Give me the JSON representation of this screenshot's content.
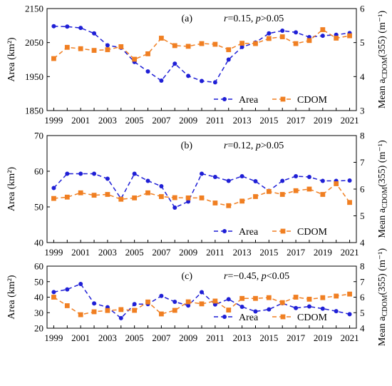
{
  "chart_data": [
    {
      "type": "line",
      "panel_label": "(a)",
      "annotation": {
        "r_label": "r",
        "r_value": "=0.15, ",
        "p_label": "p",
        "p_value": ">0.05"
      },
      "ylabel_left": "Area (km²)",
      "ylabel_right_prefix": "Mean a",
      "ylabel_right_sub": "CDOM",
      "ylabel_right_suffix": "(355) (m⁻¹)",
      "ylim_left": [
        1850,
        2150
      ],
      "yticks_left": [
        1850,
        1950,
        2050,
        2150
      ],
      "ylim_right": [
        3,
        6
      ],
      "yticks_right": [
        3,
        4,
        5,
        6
      ],
      "x": [
        1999,
        2000,
        2001,
        2002,
        2003,
        2004,
        2005,
        2006,
        2007,
        2008,
        2009,
        2010,
        2011,
        2012,
        2013,
        2014,
        2015,
        2016,
        2017,
        2018,
        2019,
        2020,
        2021
      ],
      "xtick_labels": [
        "1999",
        "2001",
        "2003",
        "2005",
        "2007",
        "2009",
        "2011",
        "2013",
        "2015",
        "2017",
        "2019",
        "2021"
      ],
      "legend": [
        "Area",
        "CDOM"
      ],
      "series": [
        {
          "name": "Area",
          "axis": "left",
          "color": "#1f1fd6",
          "values": [
            2098,
            2097,
            2093,
            2077,
            2042,
            2035,
            1993,
            1965,
            1938,
            1988,
            1952,
            1937,
            1933,
            2000,
            2037,
            2050,
            2077,
            2085,
            2080,
            2066,
            2070,
            2073,
            2078
          ]
        },
        {
          "name": "CDOM",
          "axis": "right",
          "color": "#f07f22",
          "values": [
            4.53,
            4.86,
            4.82,
            4.77,
            4.79,
            4.88,
            4.51,
            4.67,
            5.13,
            4.91,
            4.89,
            4.97,
            4.95,
            4.79,
            4.98,
            4.97,
            5.12,
            5.17,
            4.97,
            5.06,
            5.38,
            5.13,
            5.2
          ]
        }
      ]
    },
    {
      "type": "line",
      "panel_label": "(b)",
      "annotation": {
        "r_label": "r",
        "r_value": "=0.12, ",
        "p_label": "p",
        "p_value": ">0.05"
      },
      "ylabel_left": "Area (km²)",
      "ylabel_right_prefix": "Mean a",
      "ylabel_right_sub": "CDOM",
      "ylabel_right_suffix": "(355) (m⁻¹)",
      "ylim_left": [
        40,
        70
      ],
      "yticks_left": [
        40,
        50,
        60,
        70
      ],
      "ylim_right": [
        4,
        8
      ],
      "yticks_right": [
        4,
        5,
        6,
        7,
        8
      ],
      "x": [
        1999,
        2000,
        2001,
        2002,
        2003,
        2004,
        2005,
        2006,
        2007,
        2008,
        2009,
        2010,
        2011,
        2012,
        2013,
        2014,
        2015,
        2016,
        2017,
        2018,
        2019,
        2020,
        2021
      ],
      "xtick_labels": [
        "1999",
        "2001",
        "2003",
        "2005",
        "2007",
        "2009",
        "2011",
        "2013",
        "2015",
        "2017",
        "2019",
        "2021"
      ],
      "legend": [
        "Area",
        "CDOM"
      ],
      "series": [
        {
          "name": "Area",
          "axis": "left",
          "color": "#1f1fd6",
          "values": [
            55.3,
            59.3,
            59.3,
            59.3,
            57.9,
            52.3,
            59.3,
            57.3,
            55.8,
            49.8,
            51.5,
            59.3,
            58.4,
            57.3,
            58.6,
            57.2,
            54.5,
            57.3,
            58.6,
            58.4,
            57.3,
            57.3,
            57.4
          ]
        },
        {
          "name": "CDOM",
          "axis": "right",
          "color": "#f07f22",
          "values": [
            5.65,
            5.7,
            5.86,
            5.77,
            5.8,
            5.62,
            5.67,
            5.86,
            5.72,
            5.68,
            5.67,
            5.67,
            5.48,
            5.38,
            5.55,
            5.72,
            5.91,
            5.8,
            5.94,
            6.0,
            5.8,
            6.2,
            5.5
          ]
        }
      ]
    },
    {
      "type": "line",
      "panel_label": "(c)",
      "annotation": {
        "r_label": "r",
        "r_value": "=−0.45, ",
        "p_label": "p",
        "p_value": "<0.05"
      },
      "ylabel_left": "Area (km²)",
      "ylabel_right_prefix": "Mean a",
      "ylabel_right_sub": "CDOM",
      "ylabel_right_suffix": "(355) (m⁻¹)",
      "ylim_left": [
        20,
        60
      ],
      "yticks_left": [
        20,
        30,
        40,
        50,
        60
      ],
      "ylim_right": [
        4,
        8
      ],
      "yticks_right": [
        4,
        5,
        6,
        7,
        8
      ],
      "x": [
        1999,
        2000,
        2001,
        2002,
        2003,
        2004,
        2005,
        2006,
        2007,
        2008,
        2009,
        2010,
        2011,
        2012,
        2013,
        2014,
        2015,
        2016,
        2017,
        2018,
        2019,
        2020,
        2021
      ],
      "xtick_labels": [
        "1999",
        "2001",
        "2003",
        "2005",
        "2007",
        "2009",
        "2011",
        "2013",
        "2015",
        "2017",
        "2019",
        "2021"
      ],
      "legend": [
        "Area",
        "CDOM"
      ],
      "series": [
        {
          "name": "Area",
          "axis": "left",
          "color": "#1f1fd6",
          "values": [
            43.3,
            45.0,
            48.5,
            36.0,
            33.5,
            26.5,
            35.5,
            35.5,
            40.8,
            37.0,
            34.6,
            43.2,
            35.3,
            38.7,
            33.8,
            30.8,
            32.1,
            36.1,
            33.0,
            34.0,
            32.6,
            31.0,
            29.0
          ]
        },
        {
          "name": "CDOM",
          "axis": "right",
          "color": "#f07f22",
          "values": [
            6.0,
            5.45,
            4.87,
            5.06,
            5.14,
            5.2,
            5.15,
            5.69,
            4.92,
            5.15,
            5.7,
            5.57,
            5.75,
            5.17,
            5.92,
            5.92,
            5.97,
            5.65,
            6.0,
            5.87,
            5.97,
            6.07,
            6.2
          ]
        }
      ]
    }
  ]
}
